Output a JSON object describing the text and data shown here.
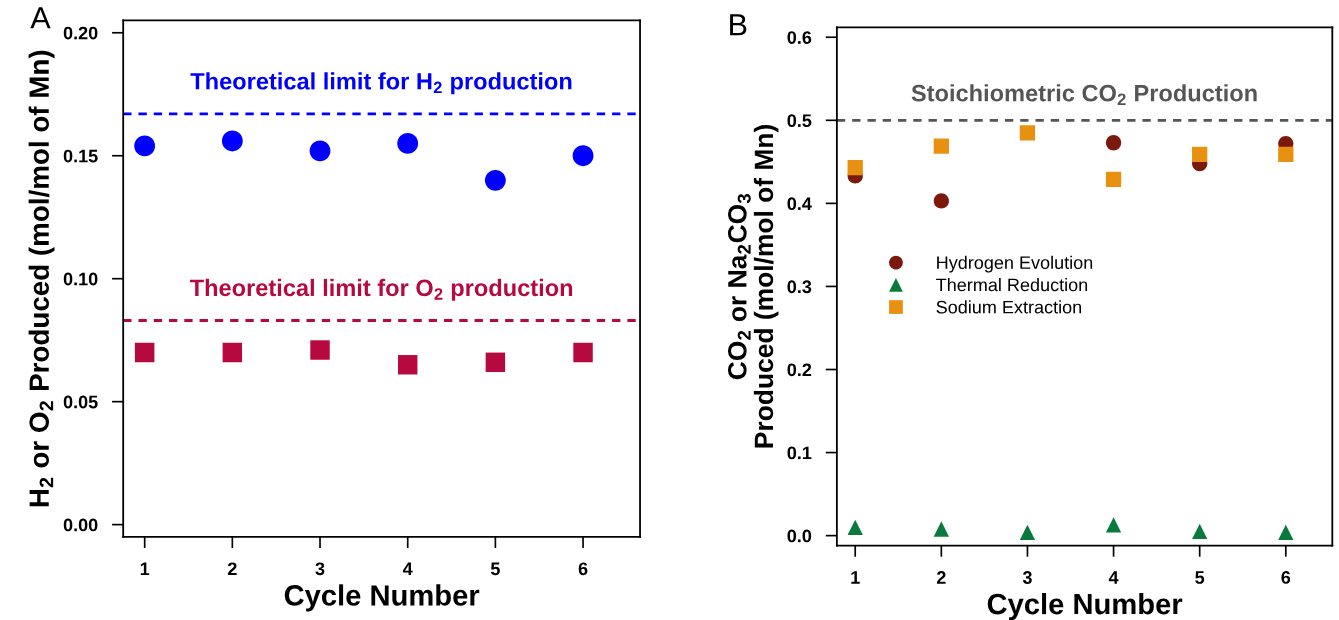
{
  "chart_data": [
    {
      "type": "scatter",
      "annotations": [
        "A"
      ],
      "xlabel": "Cycle Number",
      "ylabel": "H$_{2}$ or O$_{2}$ Produced (mol/mol of Mn)",
      "x": [
        1,
        2,
        3,
        4,
        5,
        6
      ],
      "xlim": [
        0.755,
        6.65
      ],
      "xticks": [
        1,
        2,
        3,
        4,
        5,
        6
      ],
      "ylim": [
        -0.005,
        0.205
      ],
      "yticks": [
        {
          "value": 0,
          "label": "0.00"
        },
        0.05,
        {
          "value": 0.1,
          "label": "0.10"
        },
        0.15,
        {
          "value": 0.2,
          "label": "0.20"
        }
      ],
      "grid": false,
      "legend": false,
      "series": [
        {
          "color": "#0000ff",
          "marker": "circle",
          "values": [
            0.154,
            0.156,
            0.152,
            0.155,
            0.14,
            0.15
          ]
        },
        {
          "color": "#b5093f",
          "marker": "square",
          "values": [
            0.07,
            0.07,
            0.071,
            0.065,
            0.066,
            0.07
          ]
        }
      ],
      "ref_lines": [
        {
          "axis": "y",
          "value": 0.167,
          "label": "Theoretical limit for H$_{2}$ production",
          "color": "#0000ff",
          "line_style": "dashed"
        },
        {
          "axis": "y",
          "value": 0.083,
          "label": "Theoretical limit for O$_{2}$ production",
          "color": "#b5093f",
          "line_style": "dashed"
        }
      ]
    },
    {
      "type": "scatter",
      "annotations": [
        "B"
      ],
      "xlabel": "Cycle Number",
      "ylabel": "CO$_{2}$ or Na$_{2}$CO$_{3}$\nProduced (mol/mol of Mn)",
      "x": [
        1,
        2,
        3,
        4,
        5,
        6
      ],
      "xlim": [
        0.787,
        6.54
      ],
      "xticks": [
        1,
        2,
        3,
        4,
        5,
        6
      ],
      "ylim": [
        -0.012,
        0.612
      ],
      "yticks": [
        {
          "value": 0,
          "label": "0.0"
        },
        0.1,
        0.2,
        0.3,
        0.4,
        0.5,
        0.6
      ],
      "grid": false,
      "legend": "left",
      "series": [
        {
          "name": "Hydrogen Evolution",
          "color": "#7b1a0c",
          "marker": "circle",
          "values": [
            0.433,
            0.403,
            null,
            0.473,
            0.448,
            0.472
          ]
        },
        {
          "name": "Thermal Reduction",
          "color": "#0a7a3c",
          "marker": "triangle",
          "values": [
            0.01,
            0.008,
            0.004,
            0.013,
            0.005,
            0.004
          ]
        },
        {
          "name": "Sodium Extraction",
          "color": "#e8900f",
          "marker": "square",
          "values": [
            0.443,
            0.469,
            0.485,
            0.429,
            0.459,
            0.459
          ]
        }
      ],
      "ref_lines": [
        {
          "axis": "y",
          "value": 0.5,
          "label": "Stoichiometric CO$_{2}$ Production",
          "color": "#555555",
          "line_style": "dashed"
        }
      ]
    }
  ]
}
